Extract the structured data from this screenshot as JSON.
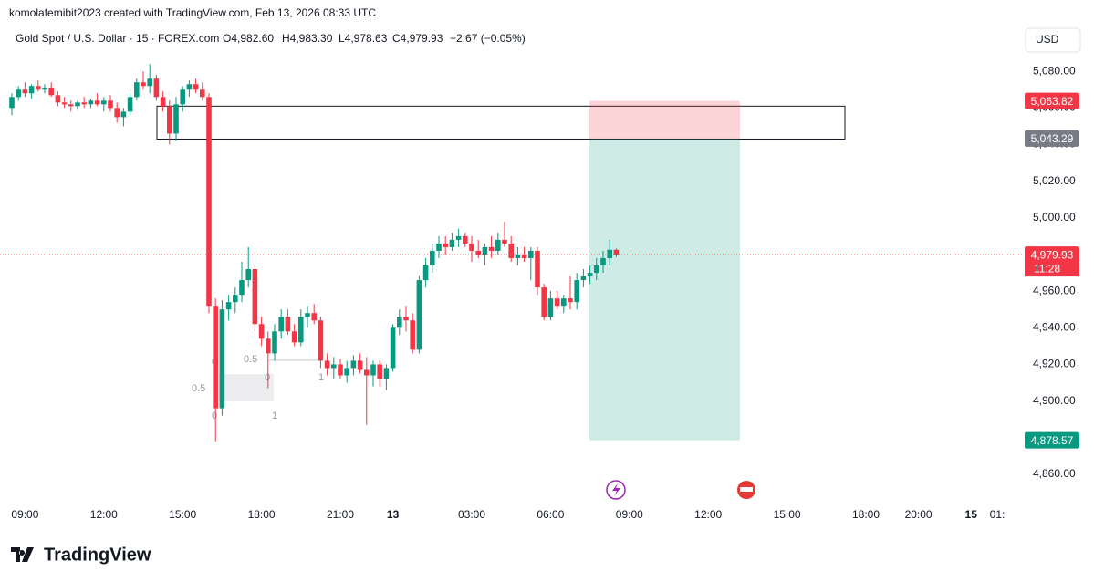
{
  "header": {
    "credit": "komolafemibit2023 created with TradingView.com, Feb 13, 2026 08:33 UTC"
  },
  "legend": {
    "symbol": "Gold Spot / U.S. Dollar · 15 · FOREX.com",
    "open": "O4,982.60",
    "high": "H4,983.30",
    "low": "L4,978.63",
    "close": "C4,979.93",
    "change": "−2.67 (−0.05%)"
  },
  "currency": "USD",
  "brand": "TradingView",
  "chart_data": {
    "type": "candlestick",
    "x": [
      "08:30",
      "08:45",
      "09:00",
      "09:15",
      "09:30",
      "09:45",
      "10:00",
      "10:15",
      "10:30",
      "10:45",
      "11:00",
      "11:15",
      "11:30",
      "11:45",
      "12:00",
      "12:15",
      "12:30",
      "12:45",
      "13:00",
      "13:15",
      "13:30",
      "13:45",
      "14:00",
      "14:15",
      "14:30",
      "14:45",
      "15:00",
      "15:15",
      "15:30",
      "15:45",
      "16:00",
      "16:15",
      "16:30",
      "16:45",
      "17:00",
      "17:15",
      "17:30",
      "17:45",
      "18:00",
      "18:15",
      "18:30",
      "18:45",
      "19:00",
      "19:15",
      "19:30",
      "19:45",
      "20:00",
      "20:15",
      "20:30",
      "20:45",
      "21:00",
      "21:15",
      "21:30",
      "21:45",
      "22:00",
      "22:15",
      "22:30",
      "22:45",
      "13",
      "00:15",
      "00:30",
      "00:45",
      "01:00",
      "01:15",
      "01:30",
      "01:45",
      "02:00",
      "02:15",
      "02:30",
      "02:45",
      "03:00",
      "03:15",
      "03:30",
      "03:45",
      "04:00",
      "04:15",
      "04:30",
      "04:45",
      "05:00",
      "05:15",
      "05:30",
      "05:45",
      "06:00",
      "06:15",
      "06:30",
      "06:45",
      "07:00",
      "07:15",
      "07:30",
      "07:45",
      "08:00",
      "08:15",
      "08:30"
    ],
    "open": [
      5060,
      5066,
      5070,
      5068,
      5072,
      5070,
      5071,
      5067,
      5063,
      5062,
      5061,
      5063,
      5062,
      5064,
      5062,
      5064,
      5060,
      5055,
      5058,
      5066,
      5074,
      5072,
      5076,
      5066,
      5061,
      5046,
      5062,
      5070,
      5073,
      5070,
      5066,
      4952,
      4896,
      4950,
      4954,
      4958,
      4966,
      4972,
      4942,
      4934,
      4926,
      4938,
      4946,
      4938,
      4932,
      4946,
      4948,
      4944,
      4922,
      4918,
      4920,
      4914,
      4918,
      4922,
      4917,
      4914,
      4920,
      4912,
      4918,
      4940,
      4946,
      4944,
      4928,
      4966,
      4974,
      4982,
      4986,
      4984,
      4988,
      4990,
      4986,
      4982,
      4980,
      4984,
      4982,
      4988,
      4986,
      4978,
      4980,
      4978,
      4982,
      4962,
      4946,
      4956,
      4952,
      4956,
      4954,
      4966,
      4968,
      4970,
      4974,
      4978,
      4982.6
    ],
    "high": [
      5068,
      5072,
      5074,
      5073,
      5075,
      5073,
      5074,
      5069,
      5066,
      5064,
      5064,
      5066,
      5065,
      5068,
      5066,
      5067,
      5063,
      5060,
      5068,
      5076,
      5080,
      5084,
      5078,
      5069,
      5064,
      5066,
      5072,
      5075,
      5076,
      5074,
      5068,
      4956,
      4955,
      4958,
      4962,
      4976,
      4984,
      4974,
      4946,
      4938,
      4942,
      4950,
      4950,
      4942,
      4950,
      4952,
      4953,
      4946,
      4926,
      4924,
      4923,
      4922,
      4925,
      4926,
      4924,
      4922,
      4922,
      4920,
      4942,
      4950,
      4952,
      4948,
      4968,
      4978,
      4986,
      4990,
      4990,
      4992,
      4994,
      4992,
      4990,
      4988,
      4986,
      4990,
      4992,
      4998,
      4990,
      4984,
      4984,
      4984,
      4984,
      4964,
      4960,
      4960,
      4958,
      4968,
      4970,
      4972,
      4974,
      4978,
      4982,
      4988,
      4983.3
    ],
    "low": [
      5056,
      5064,
      5066,
      5065,
      5069,
      5068,
      5066,
      5061,
      5060,
      5058,
      5059,
      5060,
      5060,
      5061,
      5058,
      5058,
      5052,
      5050,
      5056,
      5064,
      5070,
      5068,
      5064,
      5058,
      5040,
      5042,
      5058,
      5066,
      5068,
      5064,
      4948,
      4878,
      4892,
      4944,
      4948,
      4954,
      4962,
      4938,
      4930,
      4907,
      4922,
      4934,
      4936,
      4930,
      4930,
      4940,
      4942,
      4918,
      4914,
      4912,
      4912,
      4910,
      4914,
      4915,
      4887,
      4908,
      4908,
      4906,
      4916,
      4936,
      4938,
      4926,
      4926,
      4962,
      4970,
      4978,
      4980,
      4982,
      4984,
      4984,
      4976,
      4978,
      4974,
      4978,
      4980,
      4984,
      4976,
      4974,
      4976,
      4966,
      4958,
      4944,
      4944,
      4950,
      4948,
      4950,
      4950,
      4962,
      4964,
      4966,
      4970,
      4974,
      4978.63
    ],
    "close": [
      5066,
      5070,
      5068,
      5072,
      5070,
      5071,
      5067,
      5063,
      5062,
      5061,
      5063,
      5062,
      5064,
      5062,
      5064,
      5060,
      5055,
      5058,
      5066,
      5074,
      5072,
      5076,
      5066,
      5061,
      5046,
      5062,
      5070,
      5073,
      5070,
      5066,
      4952,
      4896,
      4950,
      4954,
      4958,
      4966,
      4972,
      4942,
      4934,
      4926,
      4938,
      4946,
      4938,
      4932,
      4946,
      4948,
      4944,
      4922,
      4918,
      4920,
      4914,
      4918,
      4922,
      4917,
      4914,
      4920,
      4912,
      4918,
      4940,
      4946,
      4944,
      4928,
      4966,
      4974,
      4982,
      4986,
      4984,
      4988,
      4990,
      4986,
      4982,
      4980,
      4984,
      4982,
      4988,
      4986,
      4978,
      4980,
      4978,
      4982,
      4962,
      4946,
      4956,
      4952,
      4956,
      4954,
      4966,
      4968,
      4970,
      4974,
      4978,
      4982.6,
      4979.93
    ],
    "up_color": "#089981",
    "down_color": "#f23645",
    "ylim": [
      4846,
      5104
    ],
    "yticks": [
      {
        "value": 5080,
        "label": "5,080.00"
      },
      {
        "value": 5060,
        "label": "5,060.00"
      },
      {
        "value": 5040,
        "label": "5,040.00"
      },
      {
        "value": 5020,
        "label": "5,020.00"
      },
      {
        "value": 5000,
        "label": "5,000.00"
      },
      {
        "value": 4960,
        "label": "4,960.00"
      },
      {
        "value": 4940,
        "label": "4,940.00"
      },
      {
        "value": 4920,
        "label": "4,920.00"
      },
      {
        "value": 4900,
        "label": "4,900.00"
      },
      {
        "value": 4860,
        "label": "4,860.00"
      }
    ],
    "xticks": [
      "09:00",
      "12:00",
      "15:00",
      "18:00",
      "21:00",
      "13",
      "03:00",
      "06:00",
      "09:00",
      "12:00",
      "15:00",
      "18:00",
      "20:00",
      "15",
      "01:"
    ],
    "grid": false,
    "zone": [
      5043,
      5061
    ],
    "stop": {
      "value": 5063.82,
      "label": "5,063.82",
      "color": "#f23645"
    },
    "entry": {
      "value": 5043.29,
      "label": "5,043.29",
      "color": "#787b86"
    },
    "target": {
      "value": 4878.57,
      "label": "4,878.57",
      "color": "#089981"
    },
    "last": {
      "value": 4979.93,
      "label": "4,979.93",
      "color": "#f23645"
    },
    "countdown": "11:28",
    "fib_labels": [
      "0.5",
      "0",
      "0",
      "1",
      "0.5",
      "0",
      "1",
      "1"
    ]
  }
}
